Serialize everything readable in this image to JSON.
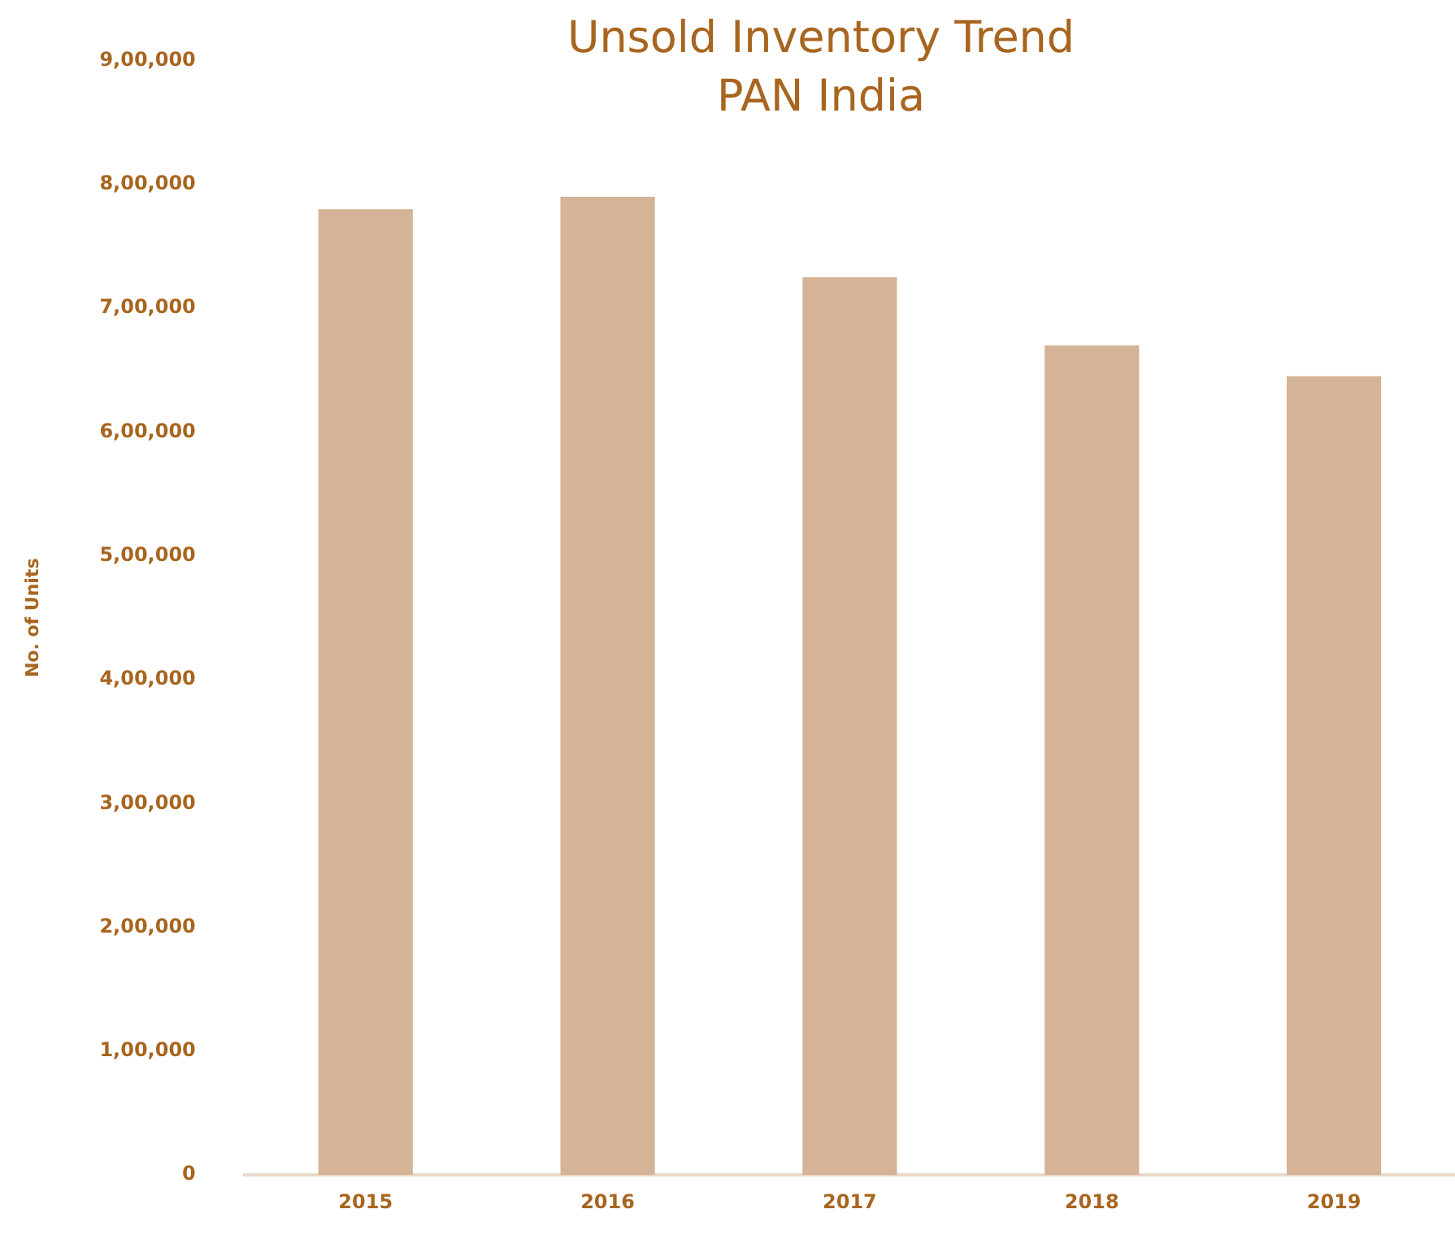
{
  "chart_data": {
    "type": "bar",
    "title": "Unsold Inventory Trend",
    "subtitle": "PAN India",
    "ylabel": "No. of Units",
    "categories": [
      "2015",
      "2016",
      "2017",
      "2018",
      "2019"
    ],
    "values": [
      780000,
      790000,
      725000,
      670000,
      645000
    ],
    "color": "#d4b396",
    "ylim": [
      0,
      900000
    ],
    "yticks": [
      {
        "value": 0,
        "label": "0"
      },
      {
        "value": 100000,
        "label": "1,00,000"
      },
      {
        "value": 200000,
        "label": "2,00,000"
      },
      {
        "value": 300000,
        "label": "3,00,000"
      },
      {
        "value": 400000,
        "label": "4,00,000"
      },
      {
        "value": 500000,
        "label": "5,00,000"
      },
      {
        "value": 600000,
        "label": "6,00,000"
      },
      {
        "value": 700000,
        "label": "7,00,000"
      },
      {
        "value": 800000,
        "label": "8,00,000"
      },
      {
        "value": 900000,
        "label": "9,00,000"
      }
    ],
    "grid": false,
    "legend": false
  }
}
